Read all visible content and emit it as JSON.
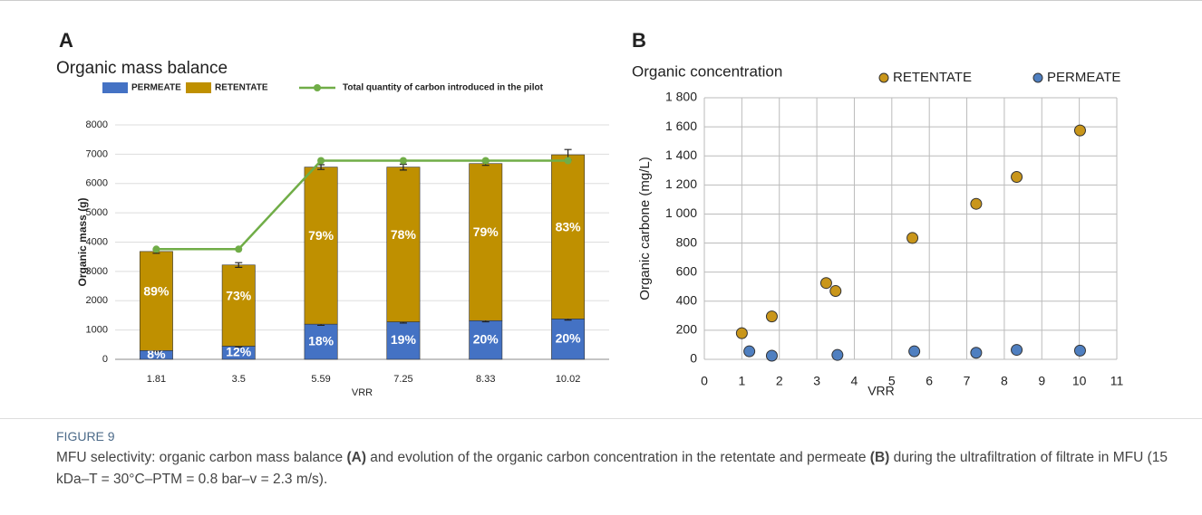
{
  "chart_data": [
    {
      "type": "bar",
      "panel": "A",
      "title": "Organic mass balance",
      "stacked": true,
      "categories": [
        "1.81",
        "3.5",
        "5.59",
        "7.25",
        "8.33",
        "10.02"
      ],
      "series": [
        {
          "name": "PERMEATE",
          "color": "#4472c4",
          "values": [
            300,
            450,
            1200,
            1280,
            1320,
            1380
          ],
          "errors": [
            40,
            30,
            40,
            40,
            40,
            40
          ],
          "labels": [
            "8%",
            "12%",
            "18%",
            "19%",
            "20%",
            "20%"
          ]
        },
        {
          "name": "RETENTATE",
          "color": "#bf9000",
          "values": [
            3380,
            2770,
            5360,
            5280,
            5360,
            5600
          ],
          "errors": [
            60,
            80,
            80,
            100,
            60,
            180
          ],
          "labels": [
            "89%",
            "73%",
            "79%",
            "78%",
            "79%",
            "83%"
          ]
        },
        {
          "name": "Total quantity of carbon  introduced in the pilot",
          "type": "line",
          "color": "#70ad47",
          "values": [
            3760,
            3760,
            6780,
            6780,
            6780,
            6780
          ]
        }
      ],
      "xlabel": "VRR",
      "ylabel": "Organic mass (g)",
      "ylim": [
        0,
        8000
      ],
      "yticks": [
        0,
        1000,
        2000,
        3000,
        4000,
        5000,
        6000,
        7000,
        8000
      ],
      "grid": true
    },
    {
      "type": "scatter",
      "panel": "B",
      "title": "Organic concentration",
      "series": [
        {
          "name": "RETENTATE",
          "color": "#c9961a",
          "x": [
            1.0,
            1.8,
            3.25,
            3.5,
            5.55,
            7.25,
            8.33,
            10.02
          ],
          "values": [
            180,
            295,
            525,
            470,
            835,
            1070,
            1255,
            1575
          ]
        },
        {
          "name": "PERMEATE",
          "color": "#4f7fc0",
          "x": [
            1.2,
            1.8,
            3.55,
            5.6,
            7.25,
            8.33,
            10.02
          ],
          "values": [
            55,
            25,
            30,
            55,
            45,
            65,
            60
          ]
        }
      ],
      "xlabel": "VRR",
      "ylabel": "Organic carbone (mg/L)",
      "xlim": [
        0,
        11
      ],
      "xticks": [
        0,
        1,
        2,
        3,
        4,
        5,
        6,
        7,
        8,
        9,
        10,
        11
      ],
      "ylim": [
        0,
        1800
      ],
      "yticks": [
        0,
        200,
        400,
        600,
        800,
        {
          "value": 1000,
          "label": "1 000"
        },
        {
          "value": 1200,
          "label": "1 200"
        },
        {
          "value": 1400,
          "label": "1 400"
        },
        {
          "value": 1600,
          "label": "1 600"
        },
        {
          "value": 1800,
          "label": "1 800"
        }
      ],
      "grid": true,
      "legend": "top"
    }
  ],
  "figure": {
    "label": "FIGURE 9",
    "caption": [
      "MFU selectivity: organic carbon mass balance ",
      "(A)",
      " and evolution of the organic carbon concentration in the retentate and permeate ",
      "(B)",
      " during the ultrafiltration of filtrate in MFU (15 kDa–T = 30°C–PTM = 0.8 bar–v = 2.3 m/s)."
    ]
  }
}
